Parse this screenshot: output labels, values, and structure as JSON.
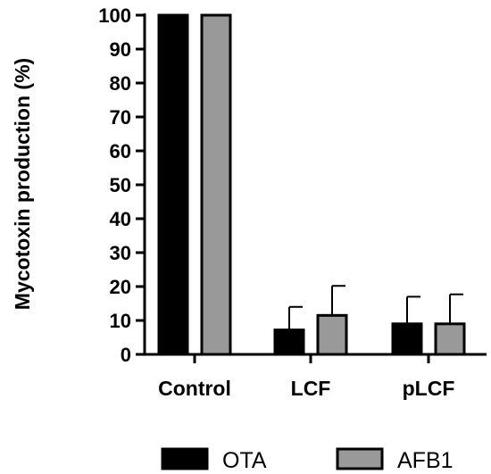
{
  "chart_data": {
    "type": "bar",
    "title": "",
    "xlabel": "",
    "ylabel": "Mycotoxin production (%)",
    "ylim": [
      0,
      100
    ],
    "yticks": [
      0,
      10,
      20,
      30,
      40,
      50,
      60,
      70,
      80,
      90,
      100
    ],
    "categories": [
      "Control",
      "LCF",
      "pLCF"
    ],
    "series": [
      {
        "name": "OTA",
        "values": [
          100,
          7.2,
          9.0
        ],
        "errors": [
          0,
          6.8,
          8.0
        ],
        "color": "#000000"
      },
      {
        "name": "AFB1",
        "values": [
          100,
          11.5,
          9.0
        ],
        "errors": [
          0,
          8.7,
          8.7
        ],
        "color": "#999999"
      }
    ],
    "legend_position": "bottom",
    "grid": false
  }
}
